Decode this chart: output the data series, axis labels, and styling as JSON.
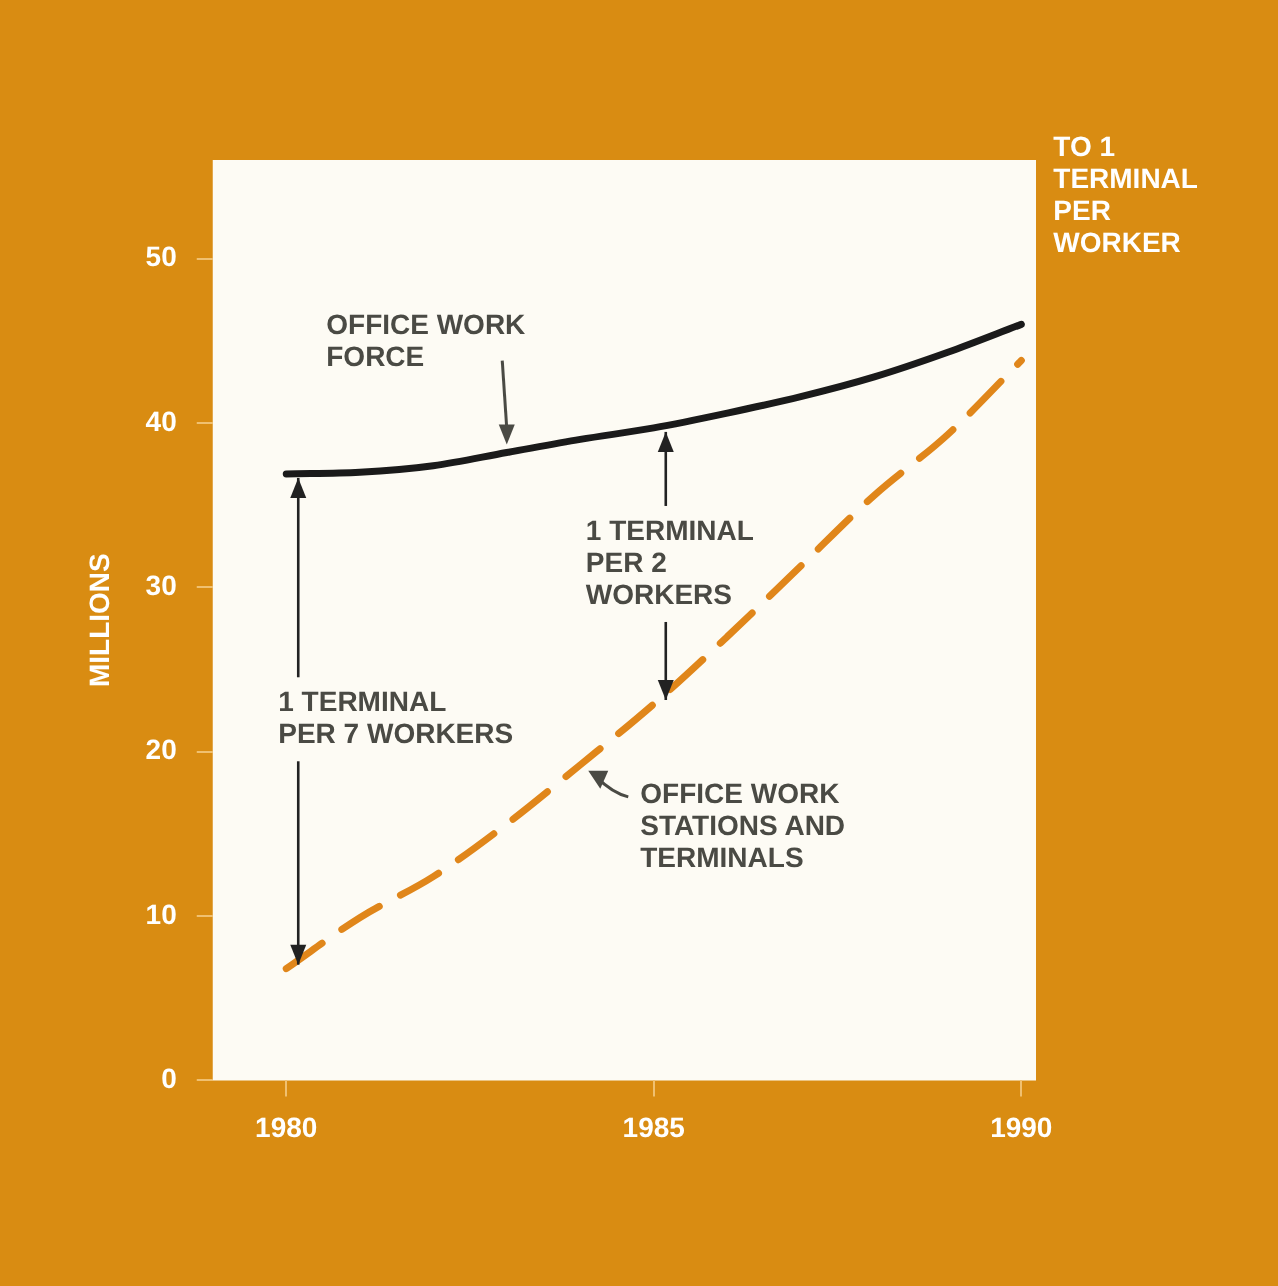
{
  "chart_data": {
    "type": "line",
    "ylabel": "MILLIONS",
    "x": [
      1980,
      1981,
      1982,
      1983,
      1984,
      1985,
      1986,
      1987,
      1988,
      1989,
      1990
    ],
    "xlim": [
      1979,
      1990.2
    ],
    "xticks": [
      1980,
      1985,
      1990
    ],
    "ylim": [
      0,
      56
    ],
    "yticks": [
      0,
      10,
      20,
      30,
      40,
      50
    ],
    "series": [
      {
        "name": "OFFICE WORK\nFORCE",
        "color": "#1a1a1a",
        "line_style": "solid",
        "values": [
          36.9,
          37.0,
          37.4,
          38.2,
          39.0,
          39.7,
          40.6,
          41.6,
          42.8,
          44.3,
          46.0
        ]
      },
      {
        "name": "OFFICE WORK\nSTATIONS AND\nTERMINALS",
        "color": "#e0861a",
        "line_style": "dashed",
        "values": [
          6.8,
          9.9,
          12.4,
          15.6,
          19.2,
          22.9,
          27.0,
          31.3,
          35.6,
          39.3,
          43.8
        ]
      }
    ],
    "annotations": [
      {
        "text": "1 TERMINAL\nPER 2\nWORKERS",
        "x": 1985,
        "y": 39.7
      },
      {
        "text": "1 TERMINAL\nPER 7 WORKERS",
        "x": 1980,
        "y": 36.9
      },
      "TO 1\nTERMINAL\nPER\nWORKER"
    ],
    "grid": false,
    "legend": false,
    "marker": "none"
  }
}
